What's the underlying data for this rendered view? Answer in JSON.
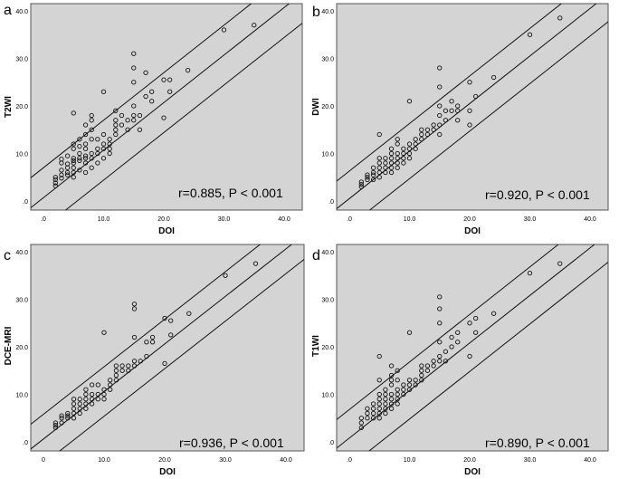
{
  "chart_data": [
    {
      "type": "scatter",
      "panel_label": "a",
      "xlabel": "DOI",
      "ylabel": "T2WI",
      "xlim": [
        0,
        40
      ],
      "ylim": [
        0,
        40
      ],
      "x_ticks": [
        0,
        10,
        20,
        30,
        40
      ],
      "y_ticks": [
        0,
        10,
        20,
        30,
        40
      ],
      "x_tick_labels": [
        ".0",
        "10.0",
        "20.0",
        "30.0",
        "40.0"
      ],
      "y_tick_labels": [
        ".0",
        "10.0",
        "20.0",
        "30.0",
        "40.0"
      ],
      "annotation": "r=0.885, P < 0.001",
      "grid": false,
      "fit_line": {
        "slope": 1.0,
        "intercept": 0.7
      },
      "confidence_band": 6.3,
      "points": [
        [
          2,
          3.2
        ],
        [
          2,
          3.8
        ],
        [
          2,
          4.5
        ],
        [
          2,
          5
        ],
        [
          3,
          4.8
        ],
        [
          3,
          5.5
        ],
        [
          3,
          6.5
        ],
        [
          3,
          8
        ],
        [
          3,
          8.8
        ],
        [
          4,
          5.5
        ],
        [
          4,
          6
        ],
        [
          4,
          7
        ],
        [
          4,
          7.8
        ],
        [
          4,
          9.5
        ],
        [
          5,
          5
        ],
        [
          5,
          6
        ],
        [
          5,
          7
        ],
        [
          5,
          8
        ],
        [
          5,
          8.5
        ],
        [
          5,
          9
        ],
        [
          5,
          11
        ],
        [
          5,
          12
        ],
        [
          5,
          18.5
        ],
        [
          6,
          6.5
        ],
        [
          6,
          8.5
        ],
        [
          6,
          9
        ],
        [
          6,
          10
        ],
        [
          6,
          11.5
        ],
        [
          6,
          13
        ],
        [
          7,
          6
        ],
        [
          7,
          8
        ],
        [
          7,
          9
        ],
        [
          7,
          9.5
        ],
        [
          7,
          11
        ],
        [
          7,
          12
        ],
        [
          7,
          14
        ],
        [
          7,
          16
        ],
        [
          8,
          7
        ],
        [
          8,
          9
        ],
        [
          8,
          10
        ],
        [
          8,
          13
        ],
        [
          8,
          15
        ],
        [
          8,
          17
        ],
        [
          8,
          18
        ],
        [
          9,
          8
        ],
        [
          9,
          10
        ],
        [
          9,
          11
        ],
        [
          9,
          13
        ],
        [
          10,
          9
        ],
        [
          10,
          11
        ],
        [
          10,
          12
        ],
        [
          10,
          14
        ],
        [
          10,
          23
        ],
        [
          11,
          10
        ],
        [
          11,
          11
        ],
        [
          11,
          12
        ],
        [
          11,
          13
        ],
        [
          12,
          14
        ],
        [
          12,
          15
        ],
        [
          12,
          16
        ],
        [
          12,
          17
        ],
        [
          12,
          19
        ],
        [
          13,
          16
        ],
        [
          13,
          18
        ],
        [
          14,
          15
        ],
        [
          14,
          17
        ],
        [
          15,
          17
        ],
        [
          15,
          18
        ],
        [
          15,
          20
        ],
        [
          15,
          25
        ],
        [
          15,
          28
        ],
        [
          15,
          31
        ],
        [
          16,
          15
        ],
        [
          16,
          18
        ],
        [
          17,
          22
        ],
        [
          17,
          27
        ],
        [
          18,
          21
        ],
        [
          18,
          23
        ],
        [
          20,
          17.5
        ],
        [
          20,
          25.5
        ],
        [
          21,
          23
        ],
        [
          21,
          25.5
        ],
        [
          24,
          27.5
        ],
        [
          30,
          36
        ],
        [
          35,
          37
        ]
      ]
    },
    {
      "type": "scatter",
      "panel_label": "b",
      "xlabel": "DOI",
      "ylabel": "DWI",
      "xlim": [
        0,
        40
      ],
      "ylim": [
        0,
        40
      ],
      "x_ticks": [
        0,
        10,
        20,
        30,
        40
      ],
      "y_ticks": [
        0,
        10,
        20,
        30,
        40
      ],
      "x_tick_labels": [
        ".0",
        "10.0",
        "20.0",
        "30.0",
        "40.0"
      ],
      "y_tick_labels": [
        ".0",
        "10.0",
        "20.0",
        "30.0",
        "40.0"
      ],
      "annotation": "r=0.920, P < 0.001",
      "grid": false,
      "fit_line": {
        "slope": 1.0,
        "intercept": 0.5
      },
      "confidence_band": 5.8,
      "points": [
        [
          2,
          3
        ],
        [
          2,
          3.5
        ],
        [
          2,
          4
        ],
        [
          3,
          4.5
        ],
        [
          3,
          5
        ],
        [
          3,
          5.5
        ],
        [
          4,
          4.5
        ],
        [
          4,
          5.5
        ],
        [
          4,
          6
        ],
        [
          4,
          7
        ],
        [
          5,
          5
        ],
        [
          5,
          6
        ],
        [
          5,
          7
        ],
        [
          5,
          8
        ],
        [
          5,
          9
        ],
        [
          5,
          14
        ],
        [
          6,
          6
        ],
        [
          6,
          7
        ],
        [
          6,
          8
        ],
        [
          6,
          9
        ],
        [
          7,
          6
        ],
        [
          7,
          7
        ],
        [
          7,
          8
        ],
        [
          7,
          9
        ],
        [
          7,
          10
        ],
        [
          7,
          11
        ],
        [
          8,
          7
        ],
        [
          8,
          8
        ],
        [
          8,
          9
        ],
        [
          8,
          10
        ],
        [
          8,
          12
        ],
        [
          8,
          13
        ],
        [
          9,
          8
        ],
        [
          9,
          9
        ],
        [
          9,
          10
        ],
        [
          9,
          11
        ],
        [
          10,
          9
        ],
        [
          10,
          10
        ],
        [
          10,
          11
        ],
        [
          10,
          12
        ],
        [
          10,
          21
        ],
        [
          11,
          11
        ],
        [
          11,
          12
        ],
        [
          11,
          13
        ],
        [
          12,
          13
        ],
        [
          12,
          14
        ],
        [
          12,
          15
        ],
        [
          13,
          14
        ],
        [
          13,
          15
        ],
        [
          14,
          15
        ],
        [
          14,
          16
        ],
        [
          15,
          14
        ],
        [
          15,
          16
        ],
        [
          15,
          18
        ],
        [
          15,
          20
        ],
        [
          15,
          24
        ],
        [
          15,
          28
        ],
        [
          16,
          17
        ],
        [
          16,
          19
        ],
        [
          17,
          19
        ],
        [
          17,
          21
        ],
        [
          18,
          17
        ],
        [
          18,
          19
        ],
        [
          18,
          20
        ],
        [
          20,
          16
        ],
        [
          20,
          19
        ],
        [
          20,
          25
        ],
        [
          21,
          22
        ],
        [
          24,
          26
        ],
        [
          30,
          35
        ],
        [
          35,
          38.5
        ]
      ]
    },
    {
      "type": "scatter",
      "panel_label": "c",
      "xlabel": "DOI",
      "ylabel": "DCE-MRI",
      "xlim": [
        0,
        40
      ],
      "ylim": [
        0,
        40
      ],
      "x_ticks": [
        0,
        10,
        20,
        30,
        40
      ],
      "y_ticks": [
        0,
        10,
        20,
        30,
        40
      ],
      "x_tick_labels": [
        "0",
        "10.0",
        "20.0",
        "30.0",
        "40.0"
      ],
      "y_tick_labels": [
        ".0",
        "10.0",
        "20.0",
        "30.0",
        "40.0"
      ],
      "annotation": "r=0.936, P < 0.001",
      "grid": false,
      "fit_line": {
        "slope": 1.0,
        "intercept": 0.6
      },
      "confidence_band": 5.2,
      "points": [
        [
          2,
          3
        ],
        [
          2,
          3.5
        ],
        [
          2,
          4
        ],
        [
          3,
          4
        ],
        [
          3,
          5
        ],
        [
          3,
          5.5
        ],
        [
          4,
          5
        ],
        [
          4,
          5.5
        ],
        [
          4,
          6
        ],
        [
          5,
          5
        ],
        [
          5,
          6
        ],
        [
          5,
          7
        ],
        [
          5,
          8
        ],
        [
          5,
          9
        ],
        [
          6,
          6
        ],
        [
          6,
          7
        ],
        [
          6,
          8
        ],
        [
          6,
          9
        ],
        [
          7,
          7
        ],
        [
          7,
          8
        ],
        [
          7,
          9
        ],
        [
          7,
          10
        ],
        [
          7,
          11
        ],
        [
          8,
          8
        ],
        [
          8,
          9
        ],
        [
          8,
          10
        ],
        [
          8,
          12
        ],
        [
          9,
          9
        ],
        [
          9,
          10
        ],
        [
          9,
          12
        ],
        [
          10,
          9
        ],
        [
          10,
          10
        ],
        [
          10,
          11
        ],
        [
          10,
          23
        ],
        [
          11,
          11
        ],
        [
          11,
          12
        ],
        [
          11,
          13
        ],
        [
          12,
          13
        ],
        [
          12,
          14
        ],
        [
          12,
          15
        ],
        [
          12,
          16
        ],
        [
          13,
          15
        ],
        [
          13,
          16
        ],
        [
          14,
          15
        ],
        [
          14,
          16
        ],
        [
          15,
          16
        ],
        [
          15,
          17
        ],
        [
          15,
          22
        ],
        [
          15,
          28
        ],
        [
          15,
          29
        ],
        [
          16,
          17
        ],
        [
          17,
          18
        ],
        [
          17,
          21
        ],
        [
          18,
          21
        ],
        [
          18,
          22
        ],
        [
          20,
          16.5
        ],
        [
          20,
          26
        ],
        [
          21,
          22.5
        ],
        [
          21,
          25.5
        ],
        [
          24,
          27
        ],
        [
          30,
          35
        ],
        [
          35,
          37.5
        ]
      ]
    },
    {
      "type": "scatter",
      "panel_label": "d",
      "xlabel": "DOI",
      "ylabel": "T1WI",
      "xlim": [
        0,
        40
      ],
      "ylim": [
        0,
        40
      ],
      "x_ticks": [
        0,
        10,
        20,
        30,
        40
      ],
      "y_ticks": [
        0,
        10,
        20,
        30,
        40
      ],
      "x_tick_labels": [
        ".0",
        "10.0",
        "20.0",
        "30.0",
        "40.0"
      ],
      "y_tick_labels": [
        ".0",
        "10.0",
        "20.0",
        "30.0",
        "40.0"
      ],
      "annotation": "r=0.890, P < 0.001",
      "grid": false,
      "fit_line": {
        "slope": 1.0,
        "intercept": 0.8
      },
      "confidence_band": 6.0,
      "points": [
        [
          2,
          3
        ],
        [
          2,
          4
        ],
        [
          2,
          5
        ],
        [
          3,
          5
        ],
        [
          3,
          6
        ],
        [
          3,
          7
        ],
        [
          4,
          5
        ],
        [
          4,
          6
        ],
        [
          4,
          7
        ],
        [
          4,
          8
        ],
        [
          5,
          5
        ],
        [
          5,
          6
        ],
        [
          5,
          7
        ],
        [
          5,
          8
        ],
        [
          5,
          9
        ],
        [
          5,
          10
        ],
        [
          5,
          13
        ],
        [
          5,
          18
        ],
        [
          6,
          6
        ],
        [
          6,
          7
        ],
        [
          6,
          8
        ],
        [
          6,
          9
        ],
        [
          6,
          10
        ],
        [
          6,
          11
        ],
        [
          7,
          7
        ],
        [
          7,
          8
        ],
        [
          7,
          9
        ],
        [
          7,
          10
        ],
        [
          7,
          12
        ],
        [
          7,
          13
        ],
        [
          7,
          14
        ],
        [
          7,
          16
        ],
        [
          8,
          8
        ],
        [
          8,
          9
        ],
        [
          8,
          10
        ],
        [
          8,
          11
        ],
        [
          8,
          13
        ],
        [
          8,
          15
        ],
        [
          9,
          10
        ],
        [
          9,
          11
        ],
        [
          9,
          12
        ],
        [
          10,
          11
        ],
        [
          10,
          12
        ],
        [
          10,
          13
        ],
        [
          10,
          23
        ],
        [
          11,
          12
        ],
        [
          11,
          13
        ],
        [
          12,
          13
        ],
        [
          12,
          14
        ],
        [
          12,
          15
        ],
        [
          12,
          16
        ],
        [
          13,
          15
        ],
        [
          13,
          16
        ],
        [
          14,
          16
        ],
        [
          14,
          17
        ],
        [
          15,
          17
        ],
        [
          15,
          18
        ],
        [
          15,
          21
        ],
        [
          15,
          25
        ],
        [
          15,
          28
        ],
        [
          15,
          30.5
        ],
        [
          16,
          17
        ],
        [
          16,
          19
        ],
        [
          17,
          20
        ],
        [
          17,
          22
        ],
        [
          18,
          21
        ],
        [
          18,
          23
        ],
        [
          20,
          18
        ],
        [
          20,
          25
        ],
        [
          21,
          23
        ],
        [
          21,
          26
        ],
        [
          24,
          27
        ],
        [
          30,
          35.5
        ],
        [
          35,
          37.5
        ]
      ]
    }
  ]
}
